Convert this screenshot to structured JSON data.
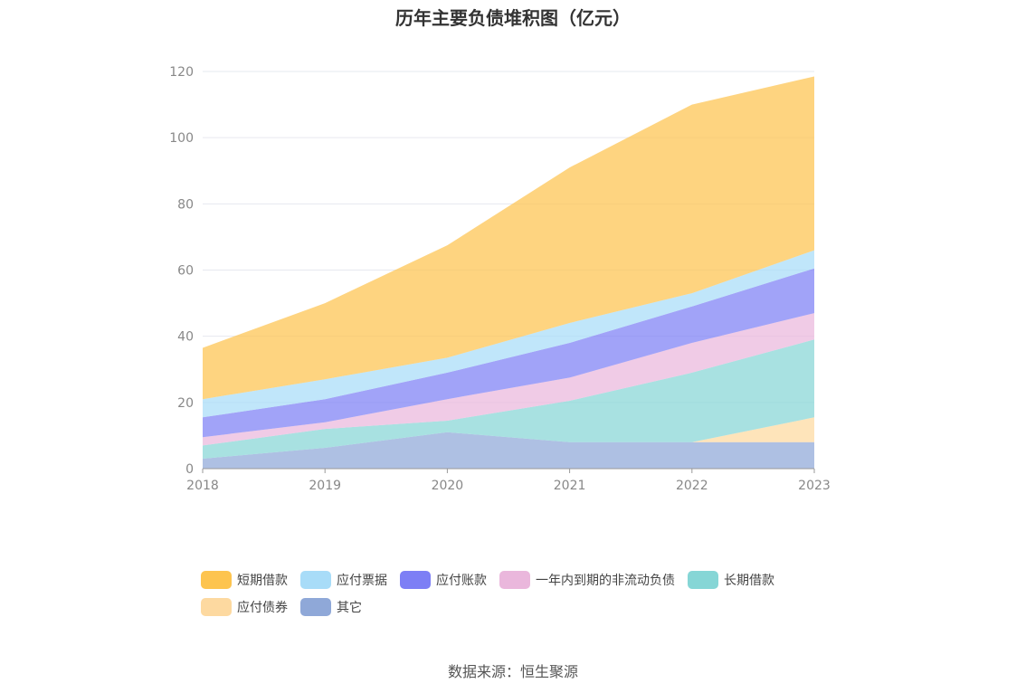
{
  "chart_data": {
    "type": "area",
    "title": "历年主要负债堆积图（亿元）",
    "stacked": true,
    "categories": [
      "2018",
      "2019",
      "2020",
      "2021",
      "2022",
      "2023"
    ],
    "y_ticks": [
      "0",
      "20",
      "40",
      "60",
      "80",
      "100",
      "120"
    ],
    "ylim": [
      0,
      120
    ],
    "grid": true,
    "legend_position": "bottom",
    "series": [
      {
        "name": "其它",
        "color": "#8fa8d8",
        "values": [
          3.0,
          6.3,
          11.0,
          8.0,
          8.0,
          8.0
        ]
      },
      {
        "name": "应付债券",
        "color": "#fdd9a0",
        "values": [
          0,
          0,
          0,
          0,
          0,
          7.5
        ]
      },
      {
        "name": "长期借款",
        "color": "#86d6d6",
        "values": [
          4.0,
          5.7,
          3.5,
          12.5,
          21.0,
          23.5
        ]
      },
      {
        "name": "一年内到期的非流动负债",
        "color": "#eab7dc",
        "values": [
          2.5,
          2.0,
          6.5,
          7.0,
          9.0,
          8.0
        ]
      },
      {
        "name": "应付账款",
        "color": "#7d7ff5",
        "values": [
          6.0,
          7.0,
          8.0,
          10.5,
          11.0,
          13.5
        ]
      },
      {
        "name": "应付票据",
        "color": "#a8dcf8",
        "values": [
          5.5,
          6.0,
          4.5,
          6.0,
          4.0,
          5.5
        ]
      },
      {
        "name": "短期借款",
        "color": "#fdc44f",
        "values": [
          15.5,
          23.0,
          34.0,
          47.0,
          57.0,
          52.5
        ]
      }
    ]
  },
  "legend": [
    {
      "label": "短期借款",
      "color": "#fdc44f"
    },
    {
      "label": "应付票据",
      "color": "#a8dcf8"
    },
    {
      "label": "应付账款",
      "color": "#7d7ff5"
    },
    {
      "label": "一年内到期的非流动负债",
      "color": "#eab7dc"
    },
    {
      "label": "长期借款",
      "color": "#86d6d6"
    },
    {
      "label": "应付债券",
      "color": "#fdd9a0"
    },
    {
      "label": "其它",
      "color": "#8fa8d8"
    }
  ],
  "source": "数据来源：恒生聚源"
}
